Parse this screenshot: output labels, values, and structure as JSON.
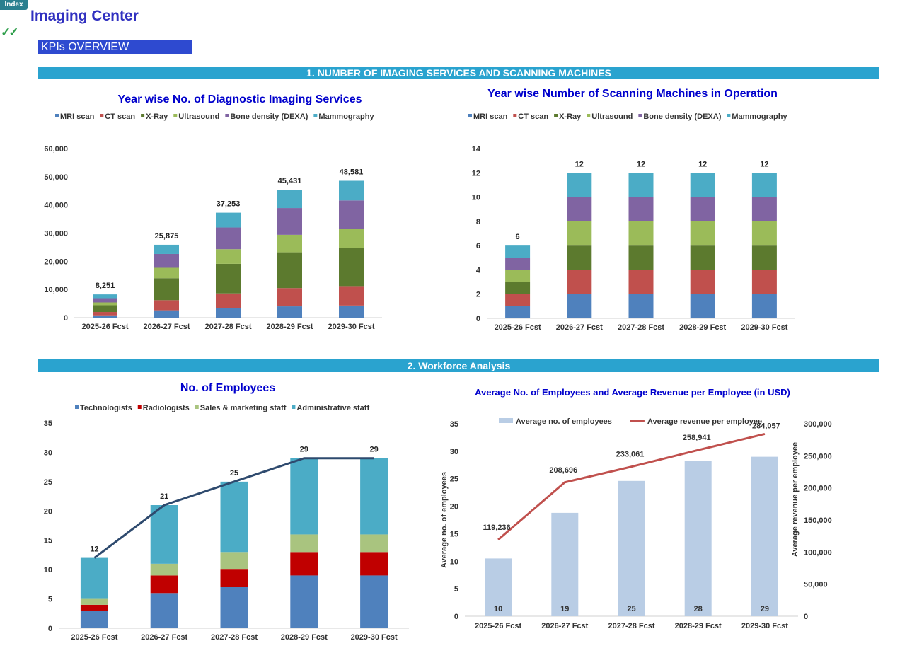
{
  "header": {
    "index_label": "Index",
    "app_title": "Imaging Center",
    "kpi_label": "KPIs OVERVIEW",
    "check_icon": "✓✓"
  },
  "sections": {
    "s1": "1. NUMBER OF IMAGING SERVICES AND SCANNING MACHINES",
    "s2": "2. Workforce Analysis"
  },
  "colors": {
    "MRI scan": "#4f81bd",
    "CT scan": "#c0504d",
    "X-Ray": "#5c7a2e",
    "Ultrasound": "#9bbb59",
    "Bone density (DEXA)": "#8064a2",
    "Mammography": "#4bacc6",
    "Technologists": "#4f81bd",
    "Radiologists": "#c00000",
    "Sales & marketing staff": "#a9c47f",
    "Administrative staff": "#4bacc6",
    "total_line": "#2e4a6e",
    "avg_emp_bar": "#b9cde5",
    "rev_line": "#c0504d",
    "title": "#0000cc"
  },
  "chart_data": [
    {
      "id": "services",
      "type": "bar",
      "stacked": true,
      "title": "Year wise No. of Diagnostic Imaging Services",
      "categories": [
        "2025-26 Fcst",
        "2026-27 Fcst",
        "2027-28 Fcst",
        "2028-29 Fcst",
        "2029-30 Fcst"
      ],
      "series": [
        {
          "name": "MRI scan",
          "values": [
            800,
            2600,
            3400,
            4000,
            4300
          ]
        },
        {
          "name": "CT scan",
          "values": [
            1200,
            3600,
            5200,
            6500,
            6900
          ]
        },
        {
          "name": "X-Ray",
          "values": [
            2400,
            7800,
            10500,
            12700,
            13600
          ]
        },
        {
          "name": "Ultrasound",
          "values": [
            1000,
            3700,
            5200,
            6200,
            6600
          ]
        },
        {
          "name": "Bone density (DEXA)",
          "values": [
            1500,
            4900,
            7700,
            9500,
            10200
          ]
        },
        {
          "name": "Mammography",
          "values": [
            1351,
            3275,
            5253,
            6531,
            6981
          ]
        }
      ],
      "totals": [
        "8,251",
        "25,875",
        "37,253",
        "45,431",
        "48,581"
      ],
      "ylim": [
        0,
        60000
      ],
      "yticks": [
        "0",
        "10,000",
        "20,000",
        "30,000",
        "40,000",
        "50,000",
        "60,000"
      ],
      "legend": "top"
    },
    {
      "id": "machines",
      "type": "bar",
      "stacked": true,
      "title": "Year wise Number of Scanning Machines in Operation",
      "categories": [
        "2025-26 Fcst",
        "2026-27 Fcst",
        "2027-28 Fcst",
        "2028-29 Fcst",
        "2029-30 Fcst"
      ],
      "series": [
        {
          "name": "MRI scan",
          "values": [
            1,
            2,
            2,
            2,
            2
          ]
        },
        {
          "name": "CT scan",
          "values": [
            1,
            2,
            2,
            2,
            2
          ]
        },
        {
          "name": "X-Ray",
          "values": [
            1,
            2,
            2,
            2,
            2
          ]
        },
        {
          "name": "Ultrasound",
          "values": [
            1,
            2,
            2,
            2,
            2
          ]
        },
        {
          "name": "Bone density (DEXA)",
          "values": [
            1,
            2,
            2,
            2,
            2
          ]
        },
        {
          "name": "Mammography",
          "values": [
            1,
            2,
            2,
            2,
            2
          ]
        }
      ],
      "totals": [
        "6",
        "12",
        "12",
        "12",
        "12"
      ],
      "ylim": [
        0,
        14
      ],
      "yticks": [
        "0",
        "2",
        "4",
        "6",
        "8",
        "10",
        "12",
        "14"
      ],
      "legend": "top"
    },
    {
      "id": "employees",
      "type": "bar",
      "stacked": true,
      "title": "No. of Employees",
      "categories": [
        "2025-26 Fcst",
        "2026-27 Fcst",
        "2027-28 Fcst",
        "2028-29 Fcst",
        "2029-30 Fcst"
      ],
      "series": [
        {
          "name": "Technologists",
          "values": [
            3,
            6,
            7,
            9,
            9
          ]
        },
        {
          "name": "Radiologists",
          "values": [
            1,
            3,
            3,
            4,
            4
          ]
        },
        {
          "name": "Sales & marketing staff",
          "values": [
            1,
            2,
            3,
            3,
            3
          ]
        },
        {
          "name": "Administrative staff",
          "values": [
            7,
            10,
            12,
            13,
            13
          ]
        }
      ],
      "total_line": [
        12,
        21,
        25,
        29,
        29
      ],
      "totals": [
        "12",
        "21",
        "25",
        "29",
        "29"
      ],
      "ylim": [
        0,
        35
      ],
      "yticks": [
        "0",
        "5",
        "10",
        "15",
        "20",
        "25",
        "30",
        "35"
      ],
      "legend": "top"
    },
    {
      "id": "avg",
      "type": "bar",
      "title": "Average No. of Employees and Average Revenue per Employee (in USD)",
      "categories": [
        "2025-26 Fcst",
        "2026-27 Fcst",
        "2027-28 Fcst",
        "2028-29 Fcst",
        "2029-30 Fcst"
      ],
      "bar_series": {
        "name": "Average no. of employees",
        "values": [
          10.5,
          18.8,
          24.6,
          28.3,
          29.0
        ],
        "labels": [
          "10",
          "19",
          "25",
          "28",
          "29"
        ]
      },
      "line_series": {
        "name": "Average revenue per employee",
        "values": [
          119236,
          208696,
          233061,
          258941,
          284057
        ],
        "labels": [
          "119,236",
          "208,696",
          "233,061",
          "258,941",
          "284,057"
        ]
      },
      "ylabel": "Average no. of employees",
      "y2label": "Average revenue per employee",
      "ylim": [
        0,
        35
      ],
      "y2lim": [
        0,
        300000
      ],
      "yticks": [
        "0",
        "5",
        "10",
        "15",
        "20",
        "25",
        "30",
        "35"
      ],
      "y2ticks": [
        "0",
        "50,000",
        "100,000",
        "150,000",
        "200,000",
        "250,000",
        "300,000"
      ],
      "legend": "top"
    }
  ]
}
